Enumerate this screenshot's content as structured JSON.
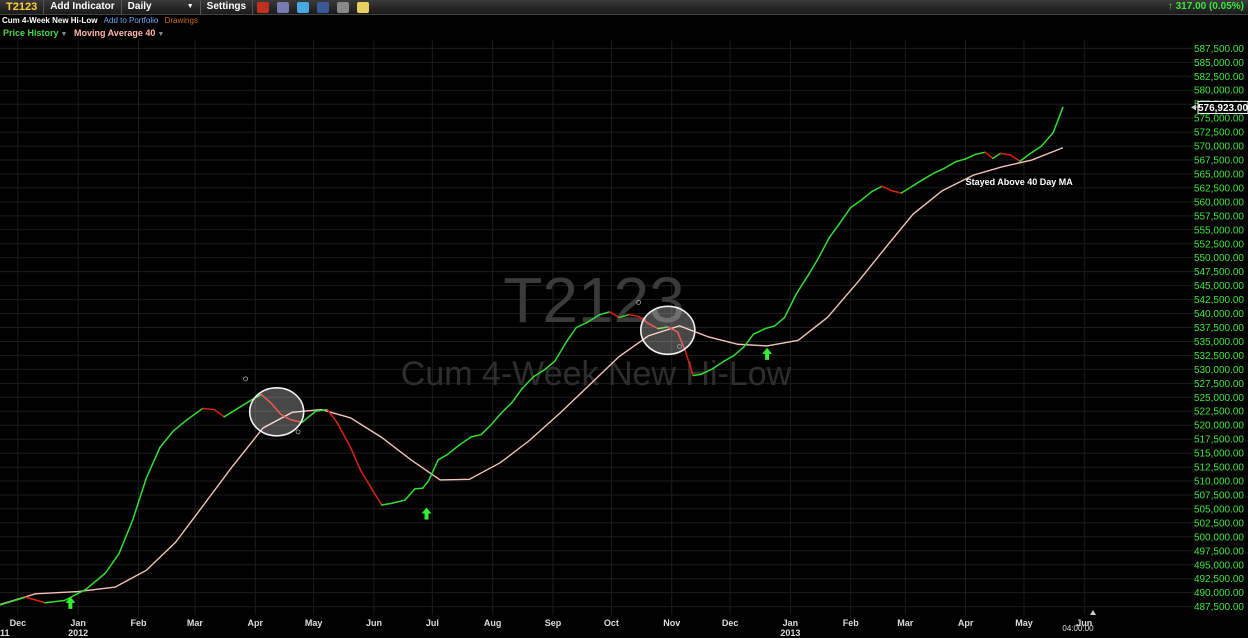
{
  "toolbar": {
    "symbol": "T2123",
    "add_indicator": "Add Indicator",
    "interval": "Daily",
    "settings": "Settings",
    "change": "317.00 (0.05%)",
    "icons": [
      "alarm-icon",
      "print-icon",
      "twitter-icon",
      "facebook-icon",
      "link-icon",
      "note-icon"
    ]
  },
  "subbar": {
    "title": "Cum 4-Week New Hi-Low",
    "add_to_portfolio": "Add to Portfolio",
    "drawings": "Drawings"
  },
  "legend": {
    "price_history": "Price History",
    "moving_average": "Moving Average 40"
  },
  "watermark": {
    "symbol": "T2123",
    "name": "Cum 4-Week New Hi-Low"
  },
  "colors": {
    "up": "#33dd33",
    "down": "#dd2211",
    "ma": "#f3c2b8",
    "axis_label": "#3ee53e",
    "grid": "#1c1c1c"
  },
  "chart_data": {
    "type": "line",
    "ylim": [
      486000,
      589000
    ],
    "y_ticks": [
      487500,
      490000,
      492500,
      495000,
      497500,
      500000,
      502500,
      505000,
      507500,
      510000,
      512500,
      515000,
      517500,
      520000,
      522500,
      525000,
      527500,
      530000,
      532500,
      535000,
      537500,
      540000,
      542500,
      545000,
      547500,
      550000,
      552500,
      555000,
      557500,
      560000,
      562500,
      565000,
      567500,
      570000,
      572500,
      575000,
      577500,
      580000,
      582500,
      585000,
      587500
    ],
    "y_tick_labels": [
      "487,500.00",
      "490,000.00",
      "492,500.00",
      "495,000.00",
      "497,500.00",
      "500,000.00",
      "502,500.00",
      "505,000.00",
      "507,500.00",
      "510,000.00",
      "512,500.00",
      "515,000.00",
      "517,500.00",
      "520,000.00",
      "522,500.00",
      "525,000.00",
      "527,500.00",
      "530,000.00",
      "532,500.00",
      "535,000.00",
      "537,500.00",
      "540,000.00",
      "542,500.00",
      "545,000.00",
      "547,500.00",
      "550,000.00",
      "552,500.00",
      "555,000.00",
      "557,500.00",
      "560,000.00",
      "562,500.00",
      "565,000.00",
      "567,500.00",
      "570,000.00",
      "572,500.00",
      "575,000.00",
      "577,500.00",
      "580,000.00",
      "582,500.00",
      "585,000.00",
      "587,500.00"
    ],
    "x_ticks": [
      {
        "label": "Dec",
        "x": "2011-12-01"
      },
      {
        "label": "Jan",
        "x": "2012-01-01",
        "year": "2012"
      },
      {
        "label": "Feb",
        "x": "2012-02-01"
      },
      {
        "label": "Mar",
        "x": "2012-03-01"
      },
      {
        "label": "Apr",
        "x": "2012-04-01"
      },
      {
        "label": "May",
        "x": "2012-05-01"
      },
      {
        "label": "Jun",
        "x": "2012-06-01"
      },
      {
        "label": "Jul",
        "x": "2012-07-01"
      },
      {
        "label": "Aug",
        "x": "2012-08-01"
      },
      {
        "label": "Sep",
        "x": "2012-09-01"
      },
      {
        "label": "Oct",
        "x": "2012-10-01"
      },
      {
        "label": "Nov",
        "x": "2012-11-01"
      },
      {
        "label": "Dec",
        "x": "2012-12-01"
      },
      {
        "label": "Jan",
        "x": "2013-01-01",
        "year": "2013"
      },
      {
        "label": "Feb",
        "x": "2013-02-01"
      },
      {
        "label": "Mar",
        "x": "2013-03-01"
      },
      {
        "label": "Apr",
        "x": "2013-04-01"
      },
      {
        "label": "May",
        "x": "2013-05-01"
      },
      {
        "label": "Jun",
        "x": "2013-06-01"
      }
    ],
    "left_edge_year": "11",
    "time_label": "04:00:00",
    "last_value_label": "576,923.00",
    "last_value": 576923,
    "series": [
      {
        "points": [
          [
            "2011-11-20",
            487600
          ],
          [
            "2011-12-05",
            489200
          ],
          [
            "2011-12-15",
            488200
          ],
          [
            "2011-12-25",
            488600
          ],
          [
            "2012-01-05",
            490600
          ],
          [
            "2012-01-15",
            493500
          ],
          [
            "2012-01-22",
            497000
          ],
          [
            "2012-01-29",
            503000
          ],
          [
            "2012-02-05",
            510500
          ],
          [
            "2012-02-12",
            516000
          ],
          [
            "2012-02-19",
            519000
          ],
          [
            "2012-02-26",
            521000
          ],
          [
            "2012-03-05",
            523000
          ],
          [
            "2012-03-11",
            522800
          ],
          [
            "2012-03-16",
            521500
          ],
          [
            "2012-03-23",
            523000
          ],
          [
            "2012-03-30",
            524500
          ],
          [
            "2012-04-04",
            525500
          ],
          [
            "2012-04-09",
            524000
          ],
          [
            "2012-04-14",
            522000
          ],
          [
            "2012-04-19",
            521000
          ],
          [
            "2012-04-25",
            520500
          ],
          [
            "2012-05-02",
            522500
          ],
          [
            "2012-05-08",
            522800
          ],
          [
            "2012-05-13",
            520500
          ],
          [
            "2012-05-20",
            516000
          ],
          [
            "2012-05-25",
            512000
          ],
          [
            "2012-05-31",
            508500
          ],
          [
            "2012-06-05",
            505700
          ],
          [
            "2012-06-10",
            506000
          ],
          [
            "2012-06-17",
            506600
          ],
          [
            "2012-06-22",
            508600
          ],
          [
            "2012-06-26",
            508700
          ],
          [
            "2012-06-29",
            510000
          ],
          [
            "2012-07-04",
            513800
          ],
          [
            "2012-07-09",
            514800
          ],
          [
            "2012-07-15",
            516500
          ],
          [
            "2012-07-21",
            517900
          ],
          [
            "2012-07-26",
            518300
          ],
          [
            "2012-07-31",
            520000
          ],
          [
            "2012-08-05",
            522000
          ],
          [
            "2012-08-11",
            524100
          ],
          [
            "2012-08-16",
            526500
          ],
          [
            "2012-08-22",
            528700
          ],
          [
            "2012-08-28",
            530000
          ],
          [
            "2012-09-02",
            531500
          ],
          [
            "2012-09-08",
            535000
          ],
          [
            "2012-09-13",
            537500
          ],
          [
            "2012-09-19",
            538500
          ],
          [
            "2012-09-25",
            539800
          ],
          [
            "2012-09-30",
            540300
          ],
          [
            "2012-10-05",
            539300
          ],
          [
            "2012-10-10",
            539800
          ],
          [
            "2012-10-15",
            539500
          ],
          [
            "2012-10-20",
            538200
          ],
          [
            "2012-10-25",
            537300
          ],
          [
            "2012-10-30",
            537600
          ],
          [
            "2012-11-04",
            536700
          ],
          [
            "2012-11-08",
            533300
          ],
          [
            "2012-11-12",
            528900
          ],
          [
            "2012-11-16",
            529100
          ],
          [
            "2012-11-22",
            530100
          ],
          [
            "2012-11-28",
            531500
          ],
          [
            "2012-12-03",
            532500
          ],
          [
            "2012-12-08",
            534000
          ],
          [
            "2012-12-13",
            536300
          ],
          [
            "2012-12-19",
            537300
          ],
          [
            "2012-12-24",
            537800
          ],
          [
            "2012-12-29",
            539300
          ],
          [
            "2013-01-04",
            543500
          ],
          [
            "2013-01-10",
            546800
          ],
          [
            "2013-01-15",
            549700
          ],
          [
            "2013-01-21",
            553600
          ],
          [
            "2013-01-26",
            556000
          ],
          [
            "2013-02-01",
            559000
          ],
          [
            "2013-02-06",
            560200
          ],
          [
            "2013-02-12",
            561900
          ],
          [
            "2013-02-17",
            562800
          ],
          [
            "2013-02-22",
            562000
          ],
          [
            "2013-02-27",
            561600
          ],
          [
            "2013-03-05",
            562900
          ],
          [
            "2013-03-10",
            564000
          ],
          [
            "2013-03-16",
            565200
          ],
          [
            "2013-03-21",
            566000
          ],
          [
            "2013-03-27",
            567200
          ],
          [
            "2013-04-01",
            567700
          ],
          [
            "2013-04-06",
            568500
          ],
          [
            "2013-04-11",
            568900
          ],
          [
            "2013-04-15",
            567800
          ],
          [
            "2013-04-19",
            568700
          ],
          [
            "2013-04-24",
            568400
          ],
          [
            "2013-04-29",
            567300
          ],
          [
            "2013-05-04",
            568600
          ],
          [
            "2013-05-10",
            570000
          ],
          [
            "2013-05-16",
            572400
          ],
          [
            "2013-05-21",
            576923
          ]
        ]
      },
      {
        "name": "Moving Average 40",
        "points": [
          [
            "2011-11-20",
            487700
          ],
          [
            "2011-12-10",
            489800
          ],
          [
            "2012-01-01",
            490200
          ],
          [
            "2012-01-20",
            491000
          ],
          [
            "2012-02-05",
            494000
          ],
          [
            "2012-02-20",
            499000
          ],
          [
            "2012-03-05",
            505500
          ],
          [
            "2012-03-20",
            512500
          ],
          [
            "2012-04-05",
            519500
          ],
          [
            "2012-04-20",
            522300
          ],
          [
            "2012-05-05",
            522800
          ],
          [
            "2012-05-20",
            521300
          ],
          [
            "2012-06-05",
            517800
          ],
          [
            "2012-06-20",
            513800
          ],
          [
            "2012-07-05",
            510200
          ],
          [
            "2012-07-20",
            510300
          ],
          [
            "2012-08-05",
            513300
          ],
          [
            "2012-08-20",
            517300
          ],
          [
            "2012-09-05",
            522300
          ],
          [
            "2012-09-20",
            527300
          ],
          [
            "2012-10-05",
            532300
          ],
          [
            "2012-10-20",
            536000
          ],
          [
            "2012-11-05",
            537800
          ],
          [
            "2012-11-20",
            535800
          ],
          [
            "2012-12-05",
            534500
          ],
          [
            "2012-12-20",
            534200
          ],
          [
            "2013-01-05",
            535200
          ],
          [
            "2013-01-20",
            539300
          ],
          [
            "2013-02-05",
            545800
          ],
          [
            "2013-02-20",
            552300
          ],
          [
            "2013-03-05",
            557800
          ],
          [
            "2013-03-20",
            562000
          ],
          [
            "2013-04-05",
            564800
          ],
          [
            "2013-04-20",
            566300
          ],
          [
            "2013-05-05",
            567500
          ],
          [
            "2013-05-21",
            569700
          ]
        ]
      }
    ],
    "annotations": [
      {
        "type": "text",
        "text": "Stayed Above 40 Day MA",
        "x": "2013-04-01",
        "y": 563000
      },
      {
        "type": "circle",
        "x": "2012-04-12",
        "y": 522400
      },
      {
        "type": "circle",
        "x": "2012-10-30",
        "y": 537000
      },
      {
        "type": "up-arrow",
        "x": "2011-12-28",
        "y": 488000
      },
      {
        "type": "up-arrow",
        "x": "2012-06-28",
        "y": 504000
      },
      {
        "type": "up-arrow",
        "x": "2012-12-20",
        "y": 532600
      },
      {
        "type": "marker",
        "x": "2012-03-27",
        "y": 528300
      },
      {
        "type": "marker",
        "x": "2012-04-23",
        "y": 518800
      },
      {
        "type": "marker",
        "x": "2012-10-15",
        "y": 542000
      },
      {
        "type": "marker",
        "x": "2012-11-05",
        "y": 534100
      }
    ]
  }
}
